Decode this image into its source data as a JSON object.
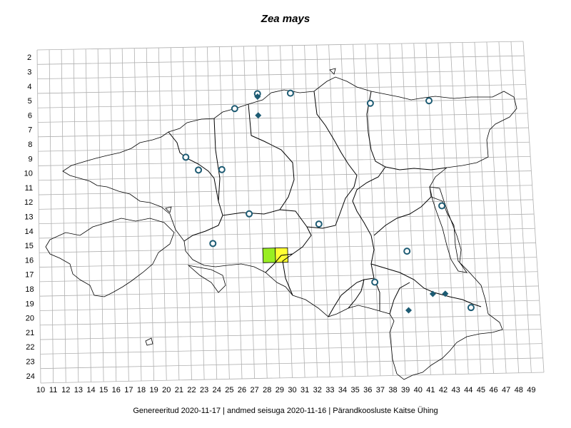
{
  "title": "Zea mays",
  "footer": "Genereeritud 2020-11-17  |  andmed seisuga 2020-11-16  |  Pärandkoosluste Kaitse Ühing",
  "grid": {
    "columns": [
      "10",
      "11",
      "12",
      "13",
      "14",
      "15",
      "16",
      "17",
      "18",
      "19",
      "20",
      "21",
      "22",
      "23",
      "24",
      "25",
      "26",
      "27",
      "28",
      "29",
      "30",
      "31",
      "32",
      "33",
      "34",
      "35",
      "36",
      "37",
      "38",
      "39",
      "40",
      "41",
      "42",
      "43",
      "44",
      "45",
      "46",
      "47",
      "48",
      "49"
    ],
    "rows": [
      "2",
      "3",
      "4",
      "5",
      "6",
      "7",
      "8",
      "9",
      "10",
      "11",
      "12",
      "13",
      "14",
      "15",
      "16",
      "17",
      "18",
      "19",
      "20",
      "21",
      "22",
      "23",
      "24"
    ]
  },
  "colors": {
    "grid": "#b0b0b0",
    "border": "#000000",
    "marker": "#1d5b73",
    "cell_green": "#99ee22",
    "cell_yellow": "#ffff33"
  },
  "markers": {
    "circles": [
      {
        "col": 28,
        "row": 5.3
      },
      {
        "col": 30.7,
        "row": 5.3
      },
      {
        "col": 26.1,
        "row": 6.3
      },
      {
        "col": 37.2,
        "row": 6.1
      },
      {
        "col": 42,
        "row": 6.0
      },
      {
        "col": 22,
        "row": 9.6
      },
      {
        "col": 23,
        "row": 10.5
      },
      {
        "col": 24.9,
        "row": 10.5
      },
      {
        "col": 27,
        "row": 13.6
      },
      {
        "col": 32.6,
        "row": 14.4
      },
      {
        "col": 24,
        "row": 15.6
      },
      {
        "col": 42.6,
        "row": 13.3
      },
      {
        "col": 39.6,
        "row": 16.4
      },
      {
        "col": 36.9,
        "row": 18.5
      },
      {
        "col": 44.5,
        "row": 20.4
      }
    ],
    "diamonds": [
      {
        "col": 28,
        "row": 5.5
      },
      {
        "col": 28,
        "row": 6.8
      },
      {
        "col": 41.5,
        "row": 19.4
      },
      {
        "col": 42.5,
        "row": 19.4
      },
      {
        "col": 39.5,
        "row": 20.5
      }
    ]
  },
  "highlighted_cells": [
    {
      "col": 28,
      "row": 17,
      "color": "cell_green"
    },
    {
      "col": 29,
      "row": 17,
      "color": "cell_yellow"
    }
  ]
}
